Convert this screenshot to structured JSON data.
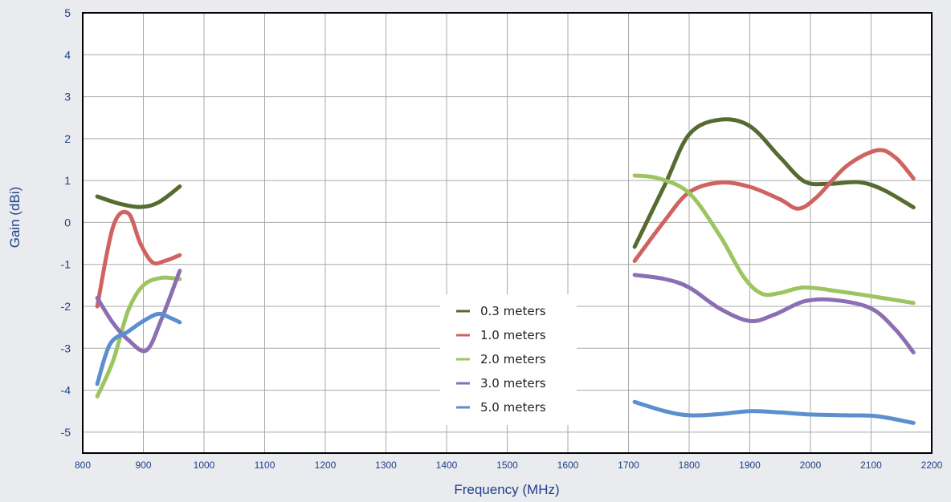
{
  "chart_data": {
    "type": "line",
    "title": "",
    "xlabel": "Frequency (MHz)",
    "ylabel": "Gain (dBi)",
    "xlim": [
      800,
      2200
    ],
    "ylim": [
      -5.5,
      5
    ],
    "x_ticks": [
      800,
      900,
      1000,
      1100,
      1200,
      1300,
      1400,
      1500,
      1600,
      1700,
      1800,
      1900,
      2000,
      2100,
      2200
    ],
    "y_ticks": [
      5,
      4,
      3,
      2,
      1,
      0,
      -1,
      -2,
      -3,
      -4,
      -5
    ],
    "grid": true,
    "legend_position": "center",
    "series": [
      {
        "name": "0.3 meters",
        "color": "#556b2f",
        "segments": [
          [
            [
              824,
              0.62
            ],
            [
              860,
              0.45
            ],
            [
              895,
              0.37
            ],
            [
              925,
              0.48
            ],
            [
              960,
              0.86
            ]
          ],
          [
            [
              1710,
              -0.58
            ],
            [
              1760,
              0.9
            ],
            [
              1800,
              2.1
            ],
            [
              1850,
              2.45
            ],
            [
              1900,
              2.3
            ],
            [
              1950,
              1.55
            ],
            [
              1990,
              0.98
            ],
            [
              2030,
              0.92
            ],
            [
              2080,
              0.96
            ],
            [
              2120,
              0.78
            ],
            [
              2170,
              0.36
            ]
          ]
        ]
      },
      {
        "name": "1.0 meters",
        "color": "#cf6360",
        "segments": [
          [
            [
              824,
              -2.0
            ],
            [
              850,
              -0.1
            ],
            [
              875,
              0.22
            ],
            [
              895,
              -0.5
            ],
            [
              915,
              -0.95
            ],
            [
              935,
              -0.92
            ],
            [
              960,
              -0.78
            ]
          ],
          [
            [
              1710,
              -0.92
            ],
            [
              1760,
              0.05
            ],
            [
              1800,
              0.72
            ],
            [
              1850,
              0.95
            ],
            [
              1900,
              0.85
            ],
            [
              1950,
              0.55
            ],
            [
              1980,
              0.33
            ],
            [
              2010,
              0.6
            ],
            [
              2060,
              1.35
            ],
            [
              2110,
              1.72
            ],
            [
              2140,
              1.55
            ],
            [
              2170,
              1.05
            ]
          ]
        ]
      },
      {
        "name": "2.0 meters",
        "color": "#9cc561",
        "segments": [
          [
            [
              824,
              -4.15
            ],
            [
              850,
              -3.3
            ],
            [
              875,
              -2.1
            ],
            [
              900,
              -1.5
            ],
            [
              930,
              -1.32
            ],
            [
              960,
              -1.35
            ]
          ],
          [
            [
              1710,
              1.12
            ],
            [
              1750,
              1.05
            ],
            [
              1800,
              0.7
            ],
            [
              1850,
              -0.3
            ],
            [
              1890,
              -1.3
            ],
            [
              1920,
              -1.7
            ],
            [
              1950,
              -1.68
            ],
            [
              1990,
              -1.55
            ],
            [
              2050,
              -1.65
            ],
            [
              2110,
              -1.78
            ],
            [
              2170,
              -1.92
            ]
          ]
        ]
      },
      {
        "name": "3.0 meters",
        "color": "#8b6fb3",
        "segments": [
          [
            [
              824,
              -1.8
            ],
            [
              850,
              -2.4
            ],
            [
              875,
              -2.8
            ],
            [
              905,
              -3.05
            ],
            [
              930,
              -2.3
            ],
            [
              960,
              -1.15
            ]
          ],
          [
            [
              1710,
              -1.25
            ],
            [
              1760,
              -1.35
            ],
            [
              1800,
              -1.55
            ],
            [
              1850,
              -2.05
            ],
            [
              1900,
              -2.35
            ],
            [
              1940,
              -2.2
            ],
            [
              1990,
              -1.88
            ],
            [
              2040,
              -1.85
            ],
            [
              2100,
              -2.05
            ],
            [
              2140,
              -2.55
            ],
            [
              2170,
              -3.1
            ]
          ]
        ]
      },
      {
        "name": "5.0 meters",
        "color": "#5b8fcf",
        "segments": [
          [
            [
              824,
              -3.85
            ],
            [
              845,
              -2.9
            ],
            [
              875,
              -2.6
            ],
            [
              900,
              -2.35
            ],
            [
              925,
              -2.18
            ],
            [
              945,
              -2.28
            ],
            [
              960,
              -2.38
            ]
          ],
          [
            [
              1710,
              -4.28
            ],
            [
              1760,
              -4.5
            ],
            [
              1800,
              -4.6
            ],
            [
              1850,
              -4.57
            ],
            [
              1900,
              -4.5
            ],
            [
              1950,
              -4.53
            ],
            [
              2000,
              -4.58
            ],
            [
              2060,
              -4.6
            ],
            [
              2110,
              -4.62
            ],
            [
              2170,
              -4.78
            ]
          ]
        ]
      }
    ]
  }
}
